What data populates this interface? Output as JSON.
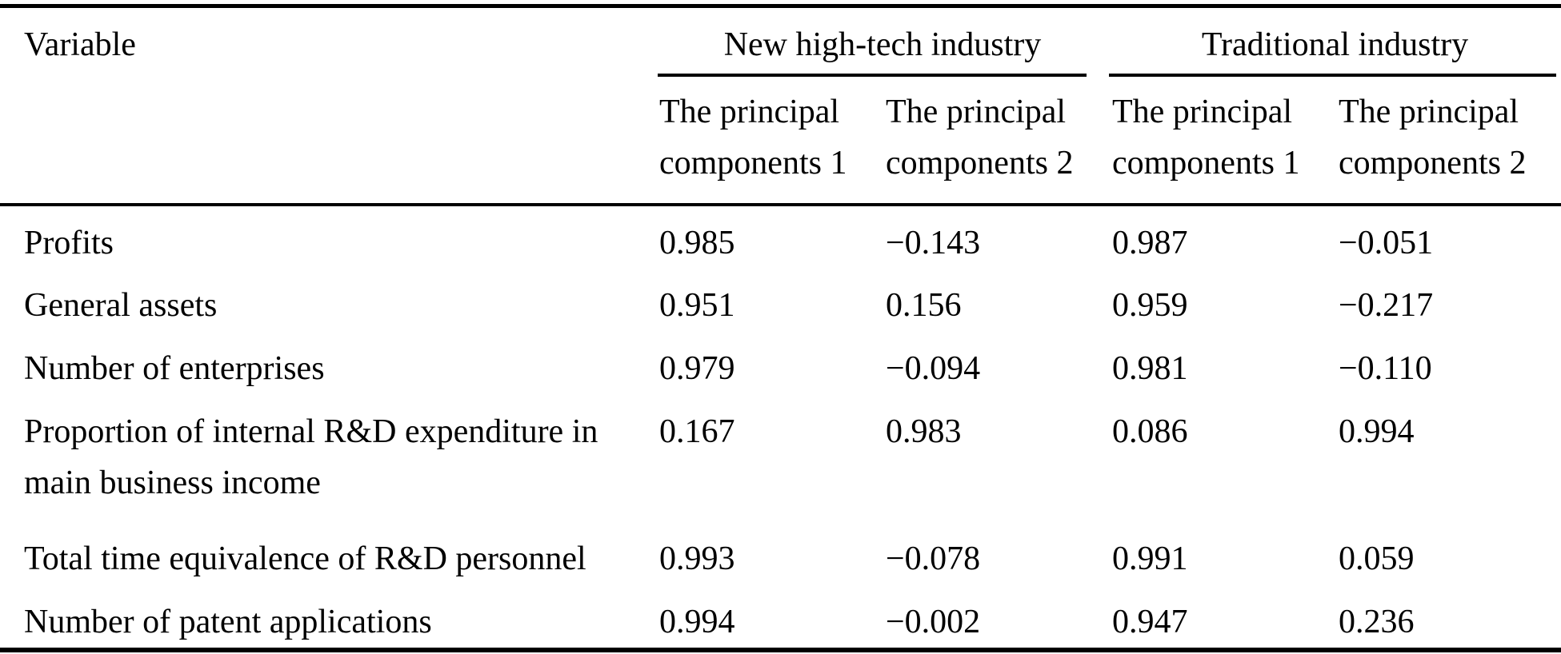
{
  "page": {
    "background": "#ffffff",
    "text_color": "#000000"
  },
  "table": {
    "variable_header": "Variable",
    "groups": [
      {
        "label": "New high-tech industry",
        "sub_headers": [
          "The principal components 1",
          "The principal components 2"
        ]
      },
      {
        "label": "Traditional industry",
        "sub_headers": [
          "The principal components 1",
          "The principal components 2"
        ]
      }
    ],
    "rows": [
      {
        "variable": "Profits",
        "values": [
          "0.985",
          "−0.143",
          "0.987",
          "−0.051"
        ]
      },
      {
        "variable": "General assets",
        "values": [
          "0.951",
          "0.156",
          "0.959",
          "−0.217"
        ]
      },
      {
        "variable": "Number of enterprises",
        "values": [
          "0.979",
          "−0.094",
          "0.981",
          "−0.110"
        ]
      },
      {
        "variable": "Proportion of internal R&D expenditure in main business income",
        "values": [
          "0.167",
          "0.983",
          "0.086",
          "0.994"
        ]
      },
      {
        "variable": "Total time equivalence of R&D personnel",
        "values": [
          "0.993",
          "−0.078",
          "0.991",
          "0.059"
        ]
      },
      {
        "variable": "Number of patent applications",
        "values": [
          "0.994",
          "−0.002",
          "0.947",
          "0.236"
        ]
      }
    ]
  },
  "chart_data": {
    "type": "table",
    "title": "",
    "columns": [
      "Variable",
      "New high-tech industry – The principal components 1",
      "New high-tech industry – The principal components 2",
      "Traditional industry – The principal components 1",
      "Traditional industry – The principal components 2"
    ],
    "rows": [
      [
        "Profits",
        0.985,
        -0.143,
        0.987,
        -0.051
      ],
      [
        "General assets",
        0.951,
        0.156,
        0.959,
        -0.217
      ],
      [
        "Number of enterprises",
        0.979,
        -0.094,
        0.981,
        -0.11
      ],
      [
        "Proportion of internal R&D expenditure in main business income",
        0.167,
        0.983,
        0.086,
        0.994
      ],
      [
        "Total time equivalence of R&D personnel",
        0.993,
        -0.078,
        0.991,
        0.059
      ],
      [
        "Number of patent applications",
        0.994,
        -0.002,
        0.947,
        0.236
      ]
    ]
  }
}
